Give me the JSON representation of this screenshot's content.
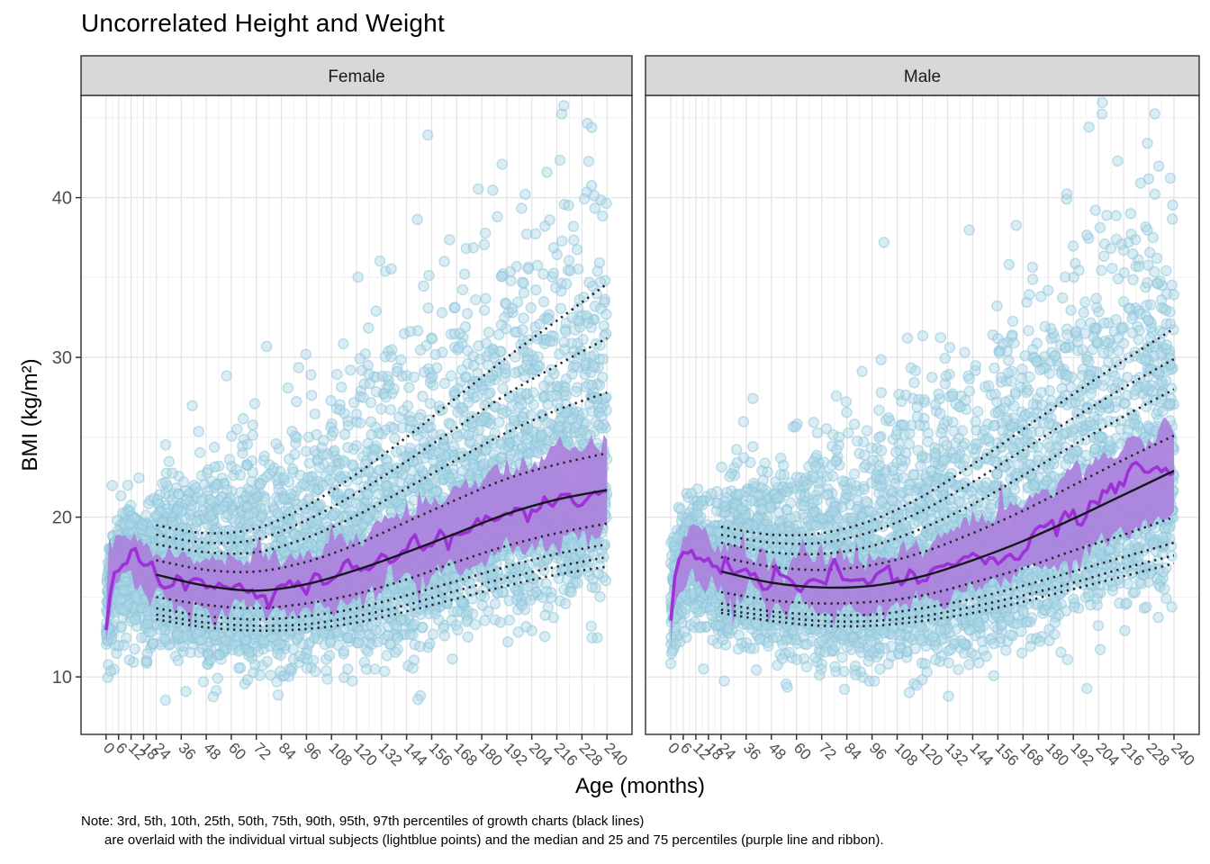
{
  "title": "Uncorrelated Height and Weight",
  "note": {
    "line1": "Note: 3rd, 5th, 10th, 25th, 50th, 75th, 90th, 95th, 97th percentiles of growth charts (black lines)",
    "line2": "are overlaid with the individual virtual subjects (lightblue points) and the median and 25 and 75 percentiles (purple line and ribbon)."
  },
  "chart_data": {
    "type": "scatter",
    "title": "Uncorrelated Height and Weight",
    "xlabel": "Age (months)",
    "ylabel": "BMI (kg/m²)",
    "facets": [
      "Female",
      "Male"
    ],
    "x_ticks": [
      0,
      6,
      12,
      18,
      24,
      36,
      48,
      60,
      72,
      84,
      96,
      108,
      120,
      132,
      144,
      156,
      168,
      180,
      192,
      204,
      216,
      228,
      240
    ],
    "y_ticks": [
      10,
      20,
      30,
      40
    ],
    "y_minor": [
      15,
      25,
      35,
      45
    ],
    "xlim": [
      -12,
      252
    ],
    "ylim": [
      6.4,
      46.4
    ],
    "grid": true,
    "legend": "none",
    "percentile_labels": [
      "3rd",
      "5th",
      "10th",
      "25th",
      "50th",
      "75th",
      "90th",
      "95th",
      "97th"
    ],
    "growth_ages": [
      24,
      48,
      72,
      96,
      120,
      144,
      168,
      192,
      216,
      240
    ],
    "growth_percentiles": {
      "Female": {
        "p3": [
          13.6,
          13.1,
          12.9,
          13.0,
          13.4,
          14.1,
          14.9,
          15.7,
          16.4,
          16.9
        ],
        "p5": [
          13.9,
          13.4,
          13.2,
          13.3,
          13.8,
          14.5,
          15.4,
          16.2,
          16.9,
          17.5
        ],
        "p10": [
          14.3,
          13.8,
          13.6,
          13.8,
          14.3,
          15.1,
          16.0,
          16.9,
          17.7,
          18.3
        ],
        "p25": [
          15.0,
          14.5,
          14.3,
          14.6,
          15.2,
          16.1,
          17.2,
          18.2,
          19.0,
          19.6
        ],
        "p50": [
          16.4,
          15.7,
          15.4,
          15.8,
          16.7,
          17.8,
          19.0,
          20.2,
          21.1,
          21.7
        ],
        "p75": [
          17.3,
          16.7,
          16.6,
          17.2,
          18.3,
          19.7,
          21.1,
          22.4,
          23.3,
          24.0
        ],
        "p90": [
          18.3,
          17.8,
          17.8,
          18.7,
          20.1,
          21.8,
          23.6,
          25.3,
          26.7,
          27.8
        ],
        "p95": [
          18.9,
          18.4,
          18.6,
          19.8,
          21.5,
          23.5,
          25.6,
          27.7,
          29.5,
          31.2
        ],
        "p97": [
          19.5,
          19.0,
          19.3,
          20.7,
          22.7,
          25.0,
          27.5,
          30.0,
          32.3,
          34.6
        ]
      },
      "Male": {
        "p3": [
          14.0,
          13.5,
          13.2,
          13.2,
          13.5,
          14.0,
          14.7,
          15.5,
          16.3,
          17.1
        ],
        "p5": [
          14.2,
          13.8,
          13.5,
          13.5,
          13.8,
          14.4,
          15.1,
          15.9,
          16.8,
          17.6
        ],
        "p10": [
          14.6,
          14.1,
          13.9,
          13.9,
          14.3,
          14.9,
          15.7,
          16.6,
          17.5,
          18.4
        ],
        "p25": [
          15.3,
          14.8,
          14.6,
          14.7,
          15.1,
          15.9,
          16.8,
          17.9,
          18.9,
          20.0
        ],
        "p50": [
          16.6,
          15.9,
          15.6,
          15.7,
          16.3,
          17.3,
          18.5,
          19.9,
          21.4,
          22.9
        ],
        "p75": [
          17.5,
          16.9,
          16.7,
          17.0,
          17.8,
          19.0,
          20.4,
          22.0,
          23.6,
          25.1
        ],
        "p90": [
          18.4,
          17.8,
          17.7,
          18.2,
          19.3,
          20.8,
          22.6,
          24.5,
          26.3,
          28.0
        ],
        "p95": [
          18.9,
          18.4,
          18.4,
          19.1,
          20.4,
          22.2,
          24.2,
          26.2,
          28.1,
          29.9
        ],
        "p97": [
          19.4,
          18.9,
          19.0,
          19.8,
          21.3,
          23.3,
          25.5,
          27.7,
          29.8,
          31.8
        ]
      }
    },
    "virtual_median_ages": [
      0,
      1,
      2,
      3,
      6,
      9,
      12,
      15,
      18,
      21,
      24,
      48,
      72,
      96,
      120,
      144,
      168,
      192,
      216,
      240
    ],
    "virtual_median": {
      "Female": [
        13.3,
        14.7,
        15.8,
        16.4,
        17.1,
        17.4,
        17.3,
        17.1,
        16.9,
        16.7,
        16.4,
        15.7,
        15.4,
        15.8,
        16.7,
        17.8,
        19.0,
        20.2,
        21.1,
        21.7
      ],
      "Male": [
        13.4,
        14.9,
        16.0,
        16.6,
        17.3,
        17.6,
        17.5,
        17.2,
        17.0,
        16.8,
        16.6,
        15.9,
        15.6,
        15.7,
        16.3,
        17.3,
        18.5,
        19.9,
        21.4,
        22.9
      ]
    },
    "ribbon_halfwidth_upper": {
      "Female": [
        0.8,
        1.0,
        1.2,
        1.3,
        1.4,
        1.4,
        1.4,
        1.4,
        1.4,
        1.4,
        1.4,
        1.5,
        1.6,
        1.8,
        2.1,
        2.4,
        2.7,
        2.9,
        3.0,
        3.1
      ],
      "Male": [
        0.8,
        1.0,
        1.2,
        1.3,
        1.4,
        1.4,
        1.4,
        1.4,
        1.4,
        1.4,
        1.4,
        1.5,
        1.6,
        1.7,
        2.0,
        2.3,
        2.6,
        2.8,
        2.9,
        3.0
      ]
    },
    "ribbon_halfwidth_lower": {
      "Female": [
        0.8,
        1.0,
        1.1,
        1.2,
        1.3,
        1.3,
        1.3,
        1.3,
        1.3,
        1.3,
        1.3,
        1.4,
        1.4,
        1.5,
        1.7,
        1.9,
        2.2,
        2.4,
        2.5,
        2.6
      ],
      "Male": [
        0.8,
        1.0,
        1.1,
        1.2,
        1.3,
        1.3,
        1.3,
        1.3,
        1.3,
        1.3,
        1.3,
        1.4,
        1.4,
        1.5,
        1.6,
        1.8,
        2.1,
        2.3,
        2.4,
        2.5
      ]
    },
    "scatter_model": {
      "n_per_facet": 5000,
      "radius": 5.5,
      "seeds": {
        "Female": 101,
        "Male": 202
      },
      "bmi_range": [
        8.5,
        46.3
      ]
    },
    "colors": {
      "point_fill": "#ADD8E6",
      "point_stroke": "#8CC4DA",
      "ribbon": "#AB81DD",
      "median_line": "#9D30D6",
      "growth_solid": "#16161D",
      "growth_dotted": "#26262B",
      "strip_bg": "#D8D8D8",
      "strip_border": "#2F2F2F",
      "panel_border": "#3A3A3A",
      "grid_major": "#E3E3E3",
      "grid_minor": "#F1F1F1",
      "tick_color": "#333333",
      "tick_label": "#4D4D4D"
    }
  }
}
